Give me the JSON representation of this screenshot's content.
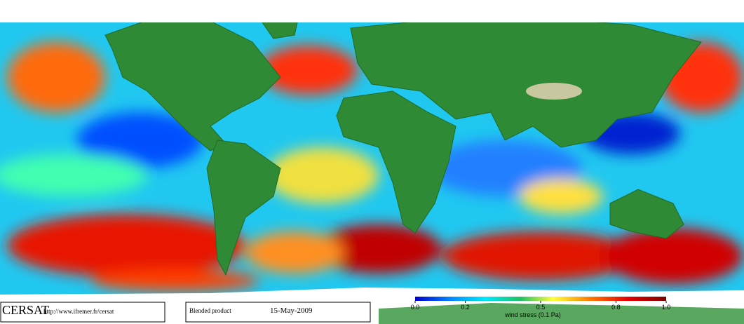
{
  "map": {
    "colorbar": {
      "lim": [
        0,
        1
      ],
      "ticks": [
        {
          "value": 0,
          "label": "0.0"
        },
        0.2,
        0.5,
        0.8,
        {
          "value": 1,
          "label": "1.0"
        }
      ],
      "label": "wind stress (0.1 Pa)"
    }
  },
  "footer": {
    "brand": "CERSAT",
    "url": "http://www.ifremer.fr/cersat",
    "product": "Blended product",
    "date": "15-May-2009"
  }
}
